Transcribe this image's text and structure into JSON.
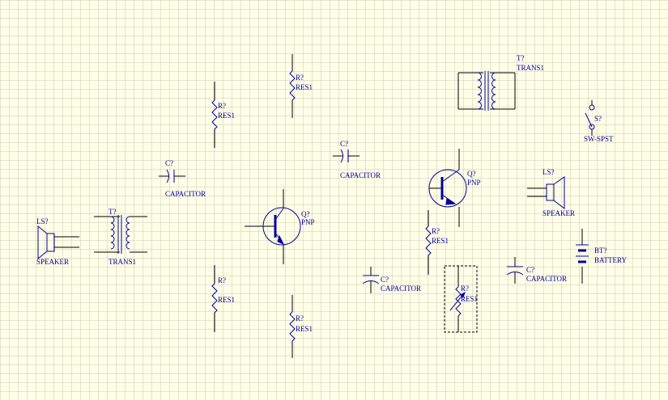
{
  "colors": {
    "background": "#ffffe8",
    "grid": "#c8c8b4",
    "wire": "#000000",
    "symbol": "#0000a0"
  },
  "components": {
    "speaker_left": {
      "designator": "LS?",
      "type": "SPEAKER"
    },
    "trans_left": {
      "designator": "T?",
      "type": "TRANS1"
    },
    "cap_top_left": {
      "designator": "C?",
      "type": "CAPACITOR"
    },
    "res_upper_a": {
      "designator": "R?",
      "type": "RES1"
    },
    "res_upper_b": {
      "designator": "R?",
      "type": "RES1"
    },
    "res_lower_a": {
      "designator": "R?",
      "type": "RES1"
    },
    "res_lower_b": {
      "designator": "R?",
      "type": "RES1"
    },
    "pnp_left": {
      "designator": "Q?",
      "type": "PNP"
    },
    "cap_top_mid": {
      "designator": "C?",
      "type": "CAPACITOR"
    },
    "pnp_right": {
      "designator": "Q?",
      "type": "PNP"
    },
    "res_mid_right": {
      "designator": "R?",
      "type": "RES1"
    },
    "pot_selected": {
      "designator": "R?",
      "type": "RES1"
    },
    "cap_pol_mid": {
      "designator": "C?",
      "type": "CAPACITOR"
    },
    "cap_pol_right": {
      "designator": "C?",
      "type": "CAPACITOR"
    },
    "trans_top_right": {
      "designator": "T?",
      "type": "TRANS1"
    },
    "switch": {
      "designator": "S?",
      "type": "SW-SPST"
    },
    "speaker_right": {
      "designator": "LS?",
      "type": "SPEAKER"
    },
    "battery": {
      "designator": "BT?",
      "type": "BATTERY"
    }
  }
}
